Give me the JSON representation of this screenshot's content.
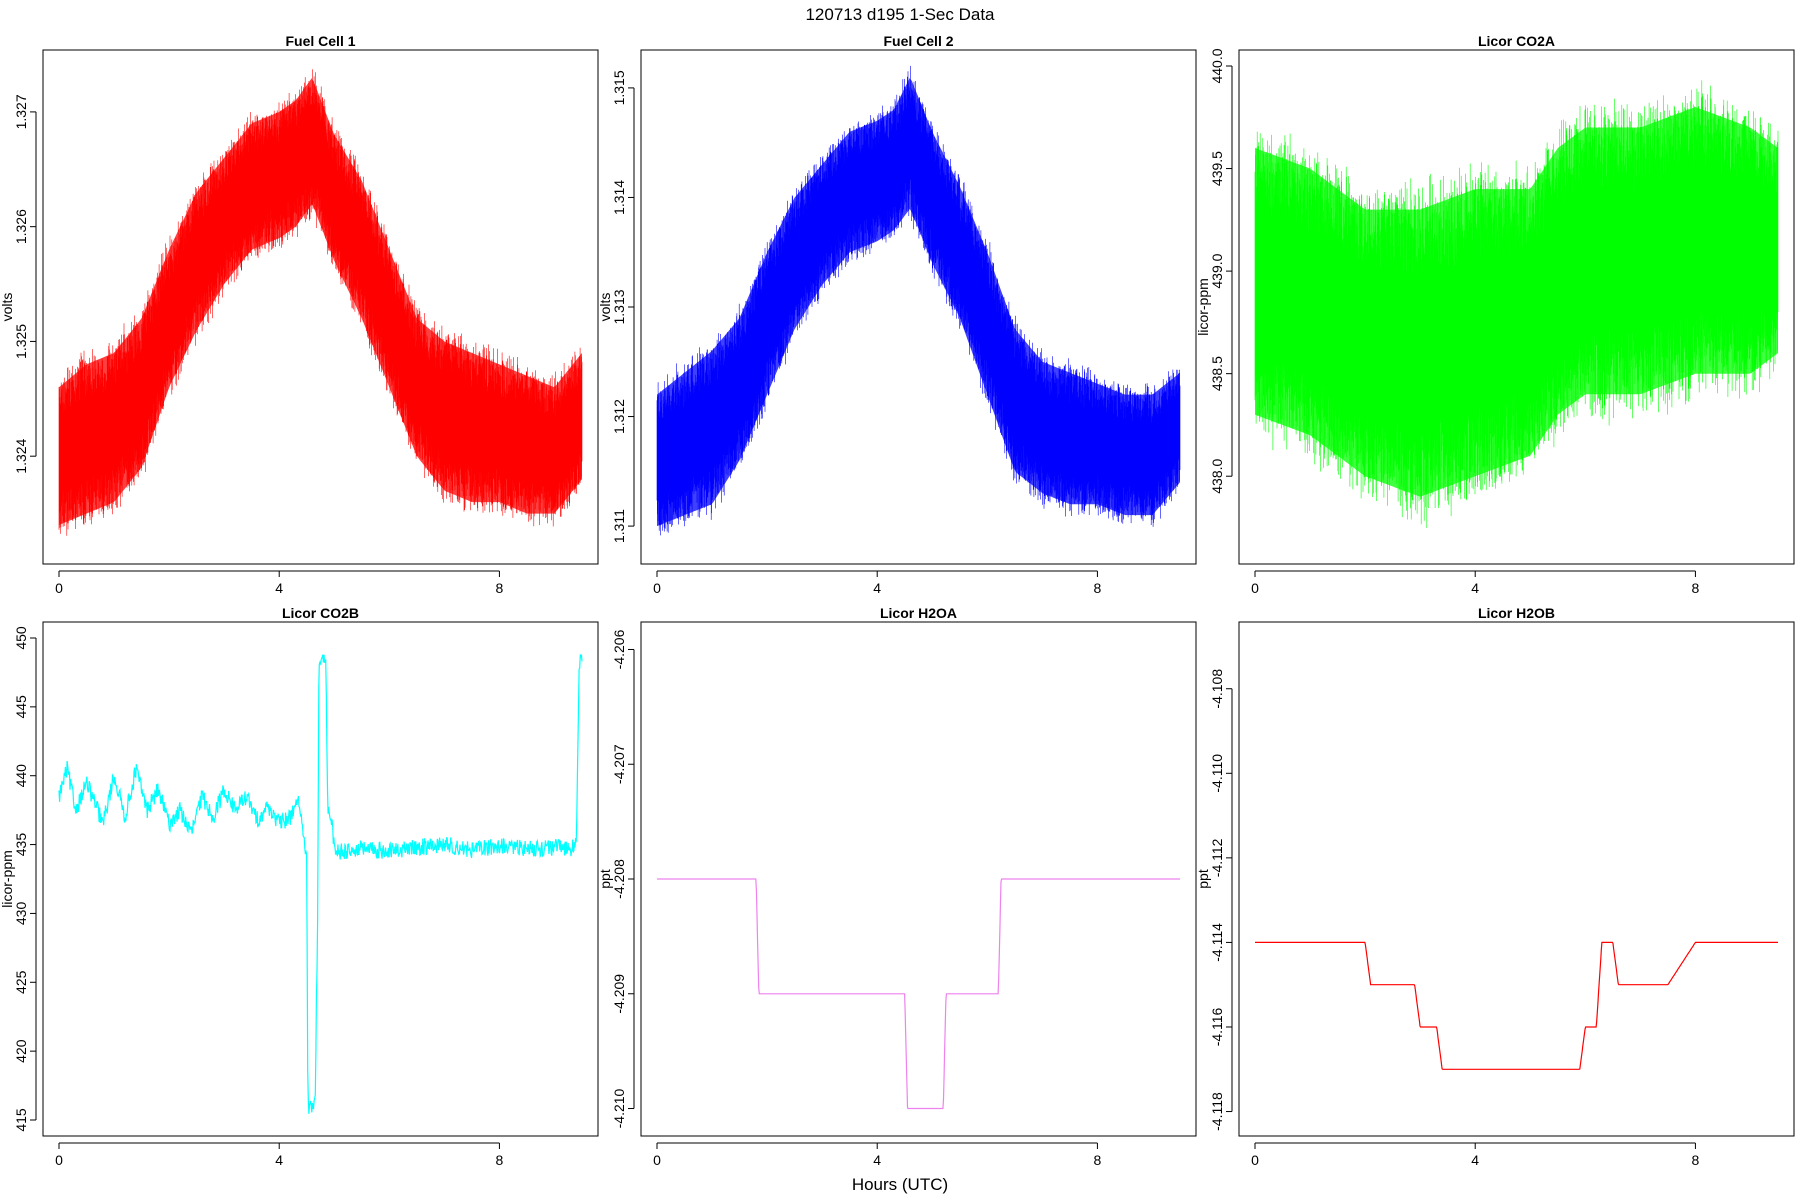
{
  "figure": {
    "title": "120713   d195   1-Sec Data",
    "xlabel": "Hours (UTC)"
  },
  "chart_data": [
    {
      "type": "line",
      "title": "Fuel Cell 1",
      "ylabel": "volts",
      "color": "#ff0000",
      "xlim": [
        0,
        9.5
      ],
      "ylim": [
        1.3232,
        1.3274
      ],
      "xticks": [
        "0",
        "4",
        "8"
      ],
      "yticks": [
        "1.324",
        "1.325",
        "1.326",
        "1.327"
      ],
      "x": [
        0,
        0.5,
        1,
        1.5,
        2,
        2.5,
        3,
        3.5,
        4,
        4.3,
        4.6,
        5,
        5.5,
        6,
        6.5,
        7,
        7.5,
        8,
        8.5,
        9,
        9.5
      ],
      "upper": [
        1.3246,
        1.3248,
        1.3249,
        1.3252,
        1.3258,
        1.3263,
        1.3266,
        1.3269,
        1.327,
        1.3271,
        1.3273,
        1.3268,
        1.3264,
        1.3258,
        1.3252,
        1.325,
        1.3249,
        1.3248,
        1.3247,
        1.3246,
        1.3249
      ],
      "lower": [
        1.3234,
        1.3235,
        1.3236,
        1.3239,
        1.3246,
        1.3251,
        1.3255,
        1.3258,
        1.3259,
        1.326,
        1.3262,
        1.3257,
        1.3252,
        1.3246,
        1.324,
        1.3237,
        1.3236,
        1.3236,
        1.3235,
        1.3235,
        1.3238
      ]
    },
    {
      "type": "line",
      "title": "Fuel Cell 2",
      "ylabel": "volts",
      "color": "#0000ff",
      "xlim": [
        0,
        9.5
      ],
      "ylim": [
        1.3108,
        1.3152
      ],
      "xticks": [
        "0",
        "4",
        "8"
      ],
      "yticks": [
        "1.311",
        "1.312",
        "1.313",
        "1.314",
        "1.315"
      ],
      "x": [
        0,
        0.5,
        1,
        1.5,
        2,
        2.5,
        3,
        3.5,
        4,
        4.3,
        4.6,
        5,
        5.5,
        6,
        6.5,
        7,
        7.5,
        8,
        8.5,
        9,
        9.5
      ],
      "upper": [
        1.3122,
        1.3124,
        1.3126,
        1.3129,
        1.3135,
        1.314,
        1.3143,
        1.3146,
        1.3147,
        1.3148,
        1.3151,
        1.3146,
        1.3141,
        1.3135,
        1.3128,
        1.3125,
        1.3124,
        1.3123,
        1.3122,
        1.3122,
        1.3124
      ],
      "lower": [
        1.311,
        1.3111,
        1.3112,
        1.3116,
        1.3122,
        1.3128,
        1.3132,
        1.3135,
        1.3136,
        1.3137,
        1.3139,
        1.3134,
        1.3129,
        1.3122,
        1.3115,
        1.3113,
        1.3112,
        1.3112,
        1.3111,
        1.3111,
        1.3114
      ]
    },
    {
      "type": "line",
      "title": "Licor CO2A",
      "ylabel": "licor-ppm",
      "color": "#00ff00",
      "xlim": [
        0,
        9.5
      ],
      "ylim": [
        437.65,
        440.0
      ],
      "xticks": [
        "0",
        "4",
        "8"
      ],
      "yticks": [
        "438.0",
        "438.5",
        "439.0",
        "439.5",
        "440.0"
      ],
      "x": [
        0,
        1,
        2,
        3,
        4,
        5,
        5.5,
        6,
        7,
        8,
        9,
        9.5
      ],
      "upper": [
        439.6,
        439.5,
        439.3,
        439.3,
        439.4,
        439.4,
        439.6,
        439.7,
        439.7,
        439.8,
        439.7,
        439.6
      ],
      "lower": [
        438.3,
        438.2,
        438.0,
        437.9,
        438.0,
        438.1,
        438.3,
        438.4,
        438.4,
        438.5,
        438.5,
        438.6
      ]
    },
    {
      "type": "line",
      "title": "Licor CO2B",
      "ylabel": "licor-ppm",
      "color": "#00ffff",
      "xlim": [
        0,
        9.5
      ],
      "ylim": [
        415,
        450
      ],
      "xticks": [
        "0",
        "4",
        "8"
      ],
      "yticks": [
        "415",
        "420",
        "425",
        "430",
        "435",
        "440",
        "445",
        "450"
      ],
      "x": [
        0,
        0.15,
        0.3,
        0.5,
        0.8,
        1.0,
        1.2,
        1.4,
        1.6,
        1.8,
        2.0,
        2.2,
        2.4,
        2.6,
        2.8,
        3.0,
        3.2,
        3.4,
        3.6,
        3.8,
        4.0,
        4.2,
        4.35,
        4.45,
        4.5,
        4.52,
        4.55,
        4.65,
        4.7,
        4.72,
        4.75,
        4.85,
        4.88,
        4.95,
        5.0,
        5.05,
        5.5,
        6.0,
        6.5,
        7.0,
        7.5,
        8.0,
        8.5,
        9.0,
        9.3,
        9.4,
        9.45,
        9.48,
        9.5
      ],
      "values": [
        438.5,
        440.5,
        437.5,
        439.5,
        436.5,
        440.0,
        437.0,
        440.5,
        437.5,
        439.0,
        436.5,
        437.5,
        435.8,
        438.5,
        437.0,
        439.0,
        437.5,
        438.5,
        436.8,
        437.8,
        436.5,
        437.0,
        438.5,
        435.0,
        434.5,
        416.0,
        415.8,
        416.0,
        430.0,
        448.0,
        448.5,
        448.0,
        437.5,
        437.0,
        434.8,
        434.5,
        434.7,
        434.5,
        434.8,
        435.0,
        434.6,
        434.9,
        434.7,
        434.8,
        434.7,
        435.5,
        448.0,
        448.5,
        448.0
      ]
    },
    {
      "type": "line",
      "title": "Licor H2OA",
      "ylabel": "ppt",
      "color": "#ee82ee",
      "xlim": [
        0,
        9.5
      ],
      "ylim": [
        -4.2101,
        -4.2059
      ],
      "xticks": [
        "0",
        "4",
        "8"
      ],
      "yticks": [
        "-4.210",
        "-4.209",
        "-4.208",
        "-4.207",
        "-4.206"
      ],
      "x": [
        0,
        1.8,
        1.85,
        3.0,
        3.05,
        4.5,
        4.55,
        5.2,
        5.25,
        6.2,
        6.25,
        9.5
      ],
      "values": [
        -4.208,
        -4.208,
        -4.209,
        -4.209,
        -4.209,
        -4.209,
        -4.21,
        -4.21,
        -4.209,
        -4.209,
        -4.208,
        -4.208
      ]
    },
    {
      "type": "line",
      "title": "Licor H2OB",
      "ylabel": "ppt",
      "color": "#ff0000",
      "xlim": [
        0,
        9.5
      ],
      "ylim": [
        -4.1182,
        -4.1068
      ],
      "xticks": [
        "0",
        "4",
        "8"
      ],
      "yticks": [
        "-4.118",
        "-4.116",
        "-4.114",
        "-4.112",
        "-4.110",
        "-4.108"
      ],
      "x": [
        0,
        2.0,
        2.1,
        2.9,
        3.0,
        3.3,
        3.4,
        5.9,
        6.0,
        6.2,
        6.3,
        6.5,
        6.6,
        7.5,
        8.0,
        9.0,
        9.5
      ],
      "values": [
        -4.114,
        -4.114,
        -4.115,
        -4.115,
        -4.116,
        -4.116,
        -4.117,
        -4.117,
        -4.116,
        -4.116,
        -4.114,
        -4.114,
        -4.115,
        -4.115,
        -4.114,
        -4.114,
        -4.114
      ]
    }
  ]
}
